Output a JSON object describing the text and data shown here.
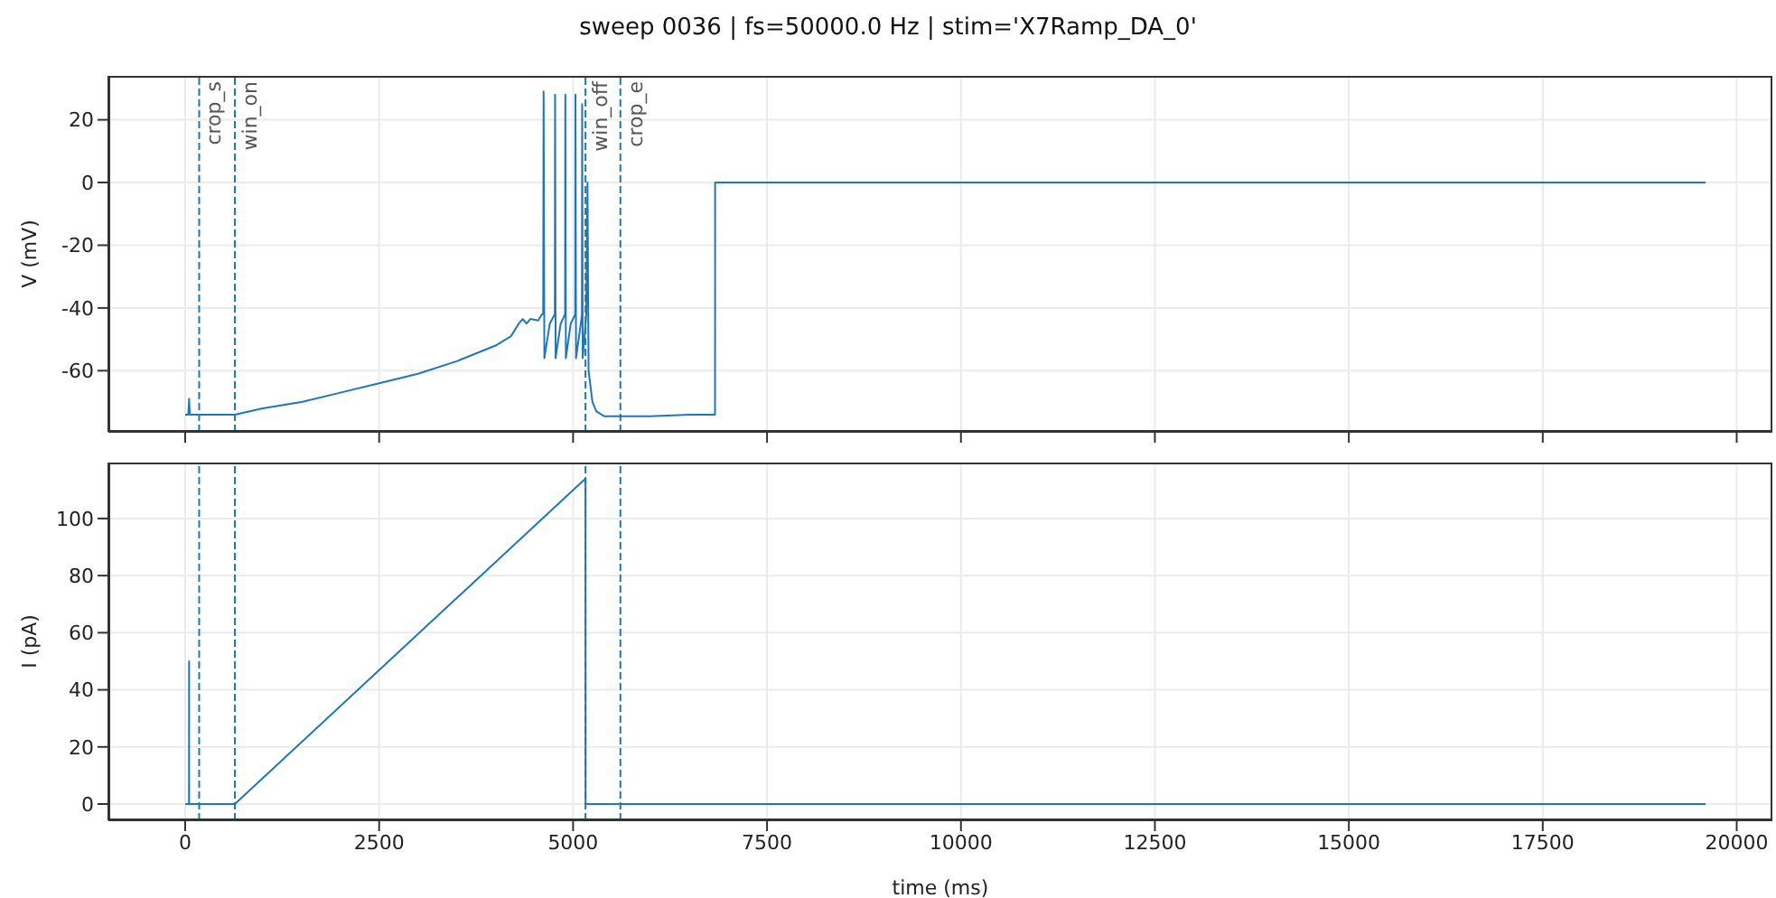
{
  "chart_data": [
    {
      "type": "line",
      "title": "sweep 0036 | fs=50000.0 Hz | stim='X7Ramp_DA_0'",
      "ylabel": "V (mV)",
      "xlim": [
        -990,
        20460
      ],
      "xticks": [
        0,
        2500,
        5000,
        7500,
        10000,
        12500,
        15000,
        17500,
        20000
      ],
      "ylim": [
        -79.5,
        34
      ],
      "yticks": [
        -60,
        -40,
        -20,
        0,
        20
      ],
      "series": [
        {
          "color": "#1f77b4",
          "x": [
            0,
            40,
            50,
            60,
            100,
            640,
            1000,
            1500,
            2000,
            2500,
            3000,
            3500,
            4000,
            4200,
            4300,
            4350,
            4400,
            4450,
            4550,
            4600,
            4615,
            4620,
            4630,
            4700,
            4765,
            4768,
            4775,
            4840,
            4897,
            4900,
            4907,
            4970,
            5028,
            5031,
            5038,
            5100,
            5114,
            5117,
            5124,
            5170,
            5186,
            5200,
            5250,
            5300,
            5400,
            5600,
            6000,
            6500,
            6830,
            6831,
            19600
          ],
          "values": [
            -74,
            -74,
            -69,
            -74,
            -74,
            -74,
            -72,
            -70,
            -67,
            -64,
            -61,
            -57,
            -52,
            -49,
            -45,
            -43.5,
            -45,
            -43.5,
            -44,
            -42,
            -42,
            29,
            -56,
            -45,
            -42,
            28,
            -56,
            -45,
            -42,
            28,
            -56,
            -45,
            -42,
            28,
            -56,
            -45,
            -42,
            25,
            -56,
            -42,
            0,
            -60,
            -70,
            -73,
            -74.5,
            -74.5,
            -74.5,
            -74,
            -74,
            0,
            0
          ]
        }
      ],
      "ref_lines": [
        {
          "axis": "x",
          "value": 180,
          "label": "crop_s",
          "color": "#1f77b4",
          "line_style": "dashed"
        },
        {
          "axis": "x",
          "value": 640,
          "label": "win_on",
          "color": "#1f77b4",
          "line_style": "dashed"
        },
        {
          "axis": "x",
          "value": 5160,
          "label": "win_off",
          "color": "#1f77b4",
          "line_style": "dashed"
        },
        {
          "axis": "x",
          "value": 5610,
          "label": "crop_e",
          "color": "#1f77b4",
          "line_style": "dashed"
        }
      ],
      "grid": true,
      "tick_labels": "y",
      "line_style": "solid"
    },
    {
      "type": "line",
      "xlabel": "time (ms)",
      "ylabel": "I (pA)",
      "xlim": [
        -990,
        20460
      ],
      "xticks": [
        0,
        2500,
        5000,
        7500,
        10000,
        12500,
        15000,
        17500,
        20000
      ],
      "ylim": [
        -5.7,
        119.6
      ],
      "yticks": [
        0,
        20,
        40,
        60,
        80,
        100
      ],
      "series": [
        {
          "color": "#1f77b4",
          "x": [
            0,
            49,
            50,
            51,
            640,
            5160,
            5161,
            19600
          ],
          "values": [
            0,
            0,
            50,
            0,
            0,
            114,
            0,
            0
          ]
        }
      ],
      "ref_lines": [
        {
          "axis": "x",
          "value": 180,
          "color": "#1f77b4",
          "line_style": "dashed"
        },
        {
          "axis": "x",
          "value": 640,
          "color": "#1f77b4",
          "line_style": "dashed"
        },
        {
          "axis": "x",
          "value": 5160,
          "color": "#1f77b4",
          "line_style": "dashed"
        },
        {
          "axis": "x",
          "value": 5610,
          "color": "#1f77b4",
          "line_style": "dashed"
        }
      ],
      "grid": true,
      "line_style": "solid"
    }
  ]
}
